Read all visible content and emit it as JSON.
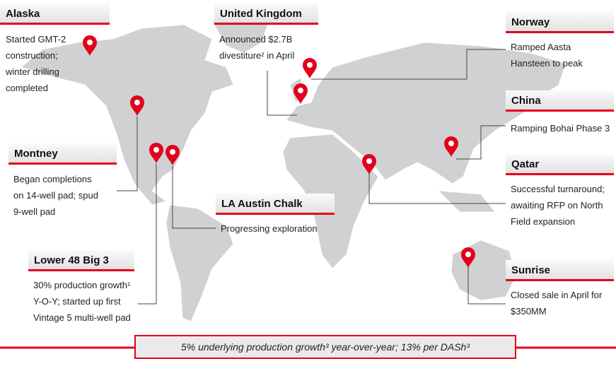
{
  "callouts": [
    {
      "title": "Alaska",
      "lines": [
        "Started GMT-2",
        "construction;",
        "winter drilling",
        "completed"
      ]
    },
    {
      "title": "United Kingdom",
      "lines": [
        "Announced $2.7B",
        "divestiture² in April"
      ]
    },
    {
      "title": "Norway",
      "lines": [
        "Ramped Aasta",
        "Hansteen to peak"
      ]
    },
    {
      "title": "China",
      "lines": [
        "Ramping Bohai Phase 3"
      ]
    },
    {
      "title": "Qatar",
      "lines": [
        "Successful turnaround;",
        "awaiting RFP on North",
        "Field expansion"
      ]
    },
    {
      "title": "Sunrise",
      "lines": [
        "Closed sale in April for",
        "$350MM"
      ]
    },
    {
      "title": "Montney",
      "lines": [
        "Began completions",
        "on 14-well pad; spud",
        "9-well pad"
      ]
    },
    {
      "title": "LA Austin Chalk",
      "lines": [
        "Progressing exploration"
      ]
    },
    {
      "title": "Lower 48 Big 3",
      "lines": [
        "30% production growth¹",
        "Y-O-Y; started up first",
        "Vintage 5 multi-well pad"
      ]
    }
  ],
  "banner": "5% underlying production growth³ year-over-year; 13% per DASh³"
}
